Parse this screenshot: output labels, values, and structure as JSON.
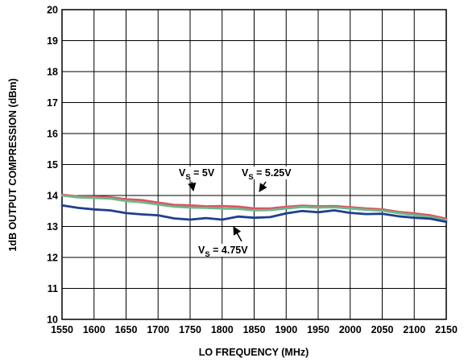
{
  "chart_data": {
    "type": "line",
    "xlabel": "LO FREQUENCY (MHz)",
    "ylabel": "1dB OUTPUT COMPRESSION (dBm)",
    "xlim": [
      1550,
      2150
    ],
    "ylim": [
      10,
      20
    ],
    "x_ticks": [
      "1550",
      "1600",
      "1650",
      "1700",
      "1750",
      "1800",
      "1850",
      "1900",
      "1950",
      "2000",
      "2050",
      "2100",
      "2150"
    ],
    "y_ticks": [
      "10",
      "11",
      "12",
      "13",
      "14",
      "15",
      "16",
      "17",
      "18",
      "19",
      "20"
    ],
    "grid": true,
    "x": [
      1550,
      1575,
      1600,
      1625,
      1650,
      1675,
      1700,
      1725,
      1750,
      1775,
      1800,
      1825,
      1850,
      1875,
      1900,
      1925,
      1950,
      1975,
      2000,
      2025,
      2050,
      2075,
      2100,
      2125,
      2150
    ],
    "series": [
      {
        "color": "#e0535f",
        "values": [
          14.02,
          13.97,
          13.96,
          13.94,
          13.88,
          13.85,
          13.77,
          13.7,
          13.68,
          13.65,
          13.66,
          13.64,
          13.58,
          13.58,
          13.63,
          13.67,
          13.65,
          13.66,
          13.62,
          13.58,
          13.55,
          13.47,
          13.42,
          13.36,
          13.25
        ]
      },
      {
        "color": "#6ab98a",
        "values": [
          14.0,
          13.94,
          13.92,
          13.9,
          13.82,
          13.78,
          13.71,
          13.64,
          13.61,
          13.6,
          13.58,
          13.57,
          13.52,
          13.53,
          13.58,
          13.63,
          13.61,
          13.62,
          13.58,
          13.54,
          13.51,
          13.43,
          13.37,
          13.31,
          13.2
        ]
      },
      {
        "color": "#1f3f8f",
        "values": [
          13.68,
          13.6,
          13.55,
          13.52,
          13.43,
          13.39,
          13.36,
          13.26,
          13.22,
          13.27,
          13.22,
          13.32,
          13.28,
          13.3,
          13.42,
          13.5,
          13.46,
          13.52,
          13.44,
          13.4,
          13.41,
          13.33,
          13.28,
          13.25,
          13.15
        ]
      }
    ],
    "annotations": [
      {
        "main": "V",
        "sub": "S",
        "rest": " = 5V"
      },
      {
        "main": "V",
        "sub": "S",
        "rest": " = 5.25V"
      },
      {
        "main": "V",
        "sub": "S",
        "rest": " = 4.75V"
      }
    ]
  }
}
